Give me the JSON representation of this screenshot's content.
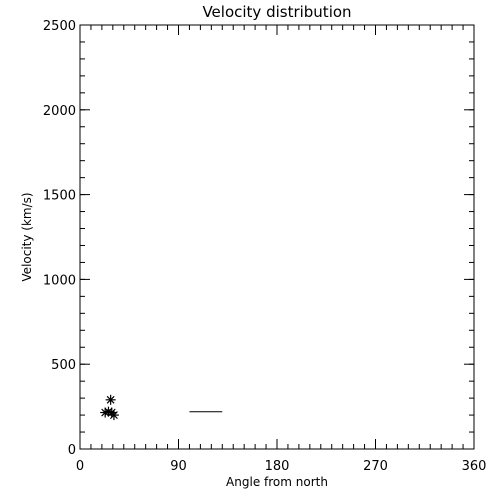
{
  "chart_data": {
    "type": "scatter",
    "title": "Velocity distribution",
    "xlabel": "Angle from north",
    "ylabel": "Velocity (km/s)",
    "xlim": [
      0,
      360
    ],
    "ylim": [
      0,
      2500
    ],
    "xticks": [
      0,
      90,
      180,
      270,
      360
    ],
    "yticks": [
      0,
      500,
      1000,
      1500,
      2000,
      2500
    ],
    "x_minor_step": 10,
    "y_minor_step": 100,
    "grid": false,
    "marker": "asterisk",
    "points": [
      {
        "x": 23,
        "y": 215
      },
      {
        "x": 26,
        "y": 220
      },
      {
        "x": 28,
        "y": 290
      },
      {
        "x": 29,
        "y": 215
      },
      {
        "x": 31,
        "y": 200
      }
    ],
    "segments": [
      {
        "x1": 100,
        "x2": 130,
        "y": 220
      }
    ]
  }
}
